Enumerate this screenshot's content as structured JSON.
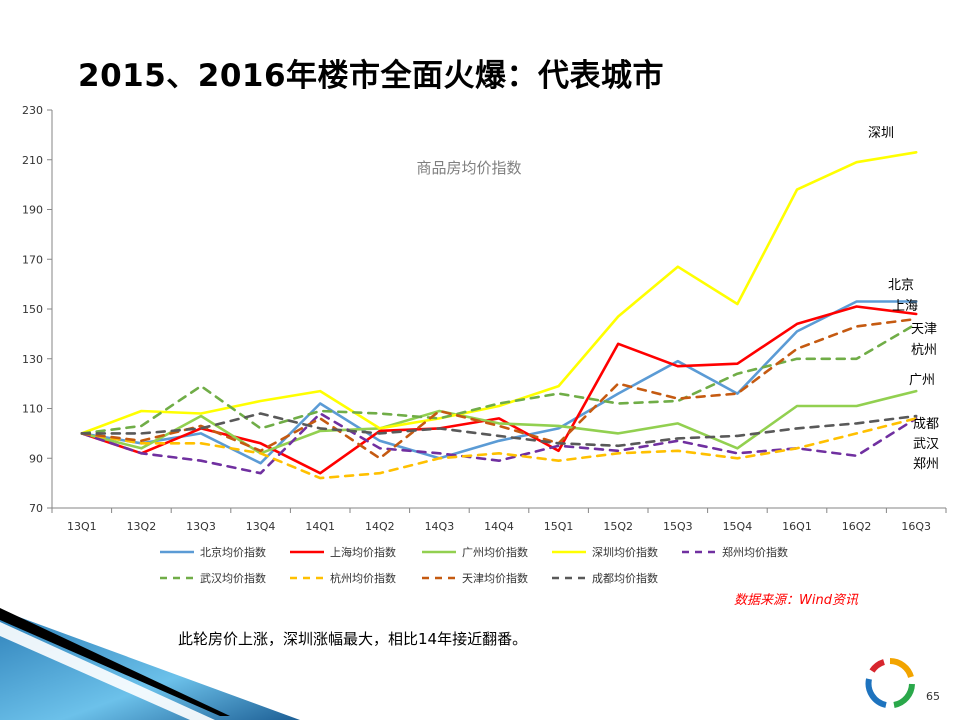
{
  "slide": {
    "title": "2015、2016年楼市全面火爆：代表城市",
    "source": "数据来源：Wind资讯",
    "caption": "此轮房价上涨，深圳涨幅最大，相比14年接近翻番。",
    "page_number": "65"
  },
  "colors": {
    "北京": "#5b9bd5",
    "上海": "#ff0000",
    "广州": "#92d050",
    "深圳": "#ffff00",
    "郑州": "#7030a0",
    "武汉": "#70ad47",
    "杭州": "#ffc000",
    "天津": "#c55a11",
    "成都": "#595959"
  },
  "chart_data": {
    "type": "line",
    "title": "商品房均价指数",
    "xlabel": "",
    "ylabel": "",
    "ylim": [
      70,
      230
    ],
    "yticks": [
      70,
      90,
      110,
      130,
      150,
      170,
      190,
      210,
      230
    ],
    "grid": false,
    "legend_position": "bottom",
    "categories": [
      "13Q1",
      "13Q2",
      "13Q3",
      "13Q4",
      "14Q1",
      "14Q2",
      "14Q3",
      "14Q4",
      "15Q1",
      "15Q2",
      "15Q3",
      "15Q4",
      "16Q1",
      "16Q2",
      "16Q3"
    ],
    "series": [
      {
        "name": "北京均价指数",
        "city": "北京",
        "dash": false,
        "values": [
          100,
          96,
          100,
          88,
          112,
          97,
          90,
          97,
          102,
          116,
          129,
          116,
          141,
          153,
          153
        ]
      },
      {
        "name": "上海均价指数",
        "city": "上海",
        "dash": false,
        "values": [
          100,
          92,
          102,
          96,
          84,
          101,
          102,
          106,
          93,
          136,
          127,
          128,
          144,
          151,
          148
        ]
      },
      {
        "name": "广州均价指数",
        "city": "广州",
        "dash": false,
        "values": [
          100,
          94,
          107,
          92,
          101,
          102,
          109,
          104,
          103,
          100,
          104,
          94,
          111,
          111,
          117
        ]
      },
      {
        "name": "深圳均价指数",
        "city": "深圳",
        "dash": false,
        "values": [
          100,
          109,
          108,
          113,
          117,
          102,
          106,
          111,
          119,
          147,
          167,
          152,
          198,
          209,
          213
        ]
      },
      {
        "name": "郑州均价指数",
        "city": "郑州",
        "dash": true,
        "values": [
          100,
          92,
          89,
          84,
          108,
          94,
          92,
          89,
          95,
          93,
          97,
          92,
          94,
          91,
          106
        ]
      },
      {
        "name": "武汉均价指数",
        "city": "武汉",
        "dash": true,
        "values": [
          100,
          103,
          119,
          102,
          109,
          108,
          106,
          112,
          116,
          112,
          113,
          124,
          130,
          130,
          144
        ]
      },
      {
        "name": "杭州均价指数",
        "city": "杭州",
        "dash": true,
        "values": [
          100,
          96,
          96,
          92,
          82,
          84,
          90,
          92,
          89,
          92,
          93,
          90,
          94,
          100,
          106
        ]
      },
      {
        "name": "天津均价指数",
        "city": "天津",
        "dash": true,
        "values": [
          100,
          97,
          103,
          93,
          106,
          90,
          109,
          103,
          96,
          120,
          114,
          116,
          134,
          143,
          146
        ]
      },
      {
        "name": "成都均价指数",
        "city": "成都",
        "dash": true,
        "values": [
          100,
          100,
          102,
          108,
          102,
          100,
          102,
          99,
          96,
          95,
          98,
          99,
          102,
          104,
          107
        ]
      }
    ],
    "annotations": [
      {
        "text": "深圳",
        "city": "深圳"
      },
      {
        "text": "北京",
        "city": "北京"
      },
      {
        "text": "上海",
        "city": "上海"
      },
      {
        "text": "天津",
        "city": "天津"
      },
      {
        "text": "杭州",
        "city": "杭州"
      },
      {
        "text": "广州",
        "city": "广州"
      },
      {
        "text": "成都",
        "city": "成都"
      },
      {
        "text": "武汉",
        "city": "武汉"
      },
      {
        "text": "郑州",
        "city": "郑州"
      }
    ]
  }
}
